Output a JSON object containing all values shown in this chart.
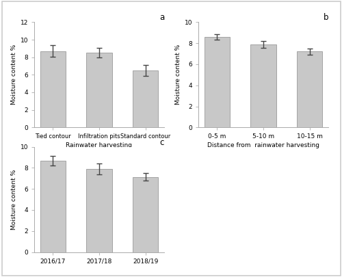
{
  "subplot_a": {
    "title": "a",
    "categories": [
      "Tied contour",
      "Infiltration pits",
      "Standard contour"
    ],
    "values": [
      8.7,
      8.5,
      6.5
    ],
    "errors": [
      0.65,
      0.55,
      0.65
    ],
    "xlabel": "Rainwater harvesting",
    "ylabel": "Moisture content %",
    "ylim": [
      0,
      12
    ],
    "yticks": [
      0,
      2,
      4,
      6,
      8,
      10,
      12
    ]
  },
  "subplot_b": {
    "title": "b",
    "categories": [
      "0-5 m",
      "5-10 m",
      "10-15 m"
    ],
    "values": [
      8.6,
      7.9,
      7.2
    ],
    "errors": [
      0.28,
      0.32,
      0.28
    ],
    "xlabel": "Distance from  rainwater harvesting",
    "ylabel": "Moisture content %",
    "ylim": [
      0,
      10
    ],
    "yticks": [
      0,
      2,
      4,
      6,
      8,
      10
    ]
  },
  "subplot_c": {
    "title": "c",
    "categories": [
      "2016/17",
      "2017/18",
      "2018/19"
    ],
    "values": [
      8.7,
      7.9,
      7.15
    ],
    "errors": [
      0.45,
      0.5,
      0.38
    ],
    "xlabel": "",
    "ylabel": "Moisture content %",
    "ylim": [
      0,
      10
    ],
    "yticks": [
      0,
      2,
      4,
      6,
      8,
      10
    ]
  },
  "bar_color": "#c8c8c8",
  "bar_edgecolor": "#999999",
  "bar_width": 0.55,
  "errorbar_color": "#444444",
  "errorbar_capsize": 3,
  "errorbar_linewidth": 1.0,
  "background_color": "#ffffff",
  "tick_labelsize": 6.5,
  "axis_labelsize": 6.5,
  "xlabel_labelsize": 6.5,
  "title_fontsize": 8.5,
  "spine_color": "#aaaaaa",
  "outer_border_color": "#cccccc"
}
